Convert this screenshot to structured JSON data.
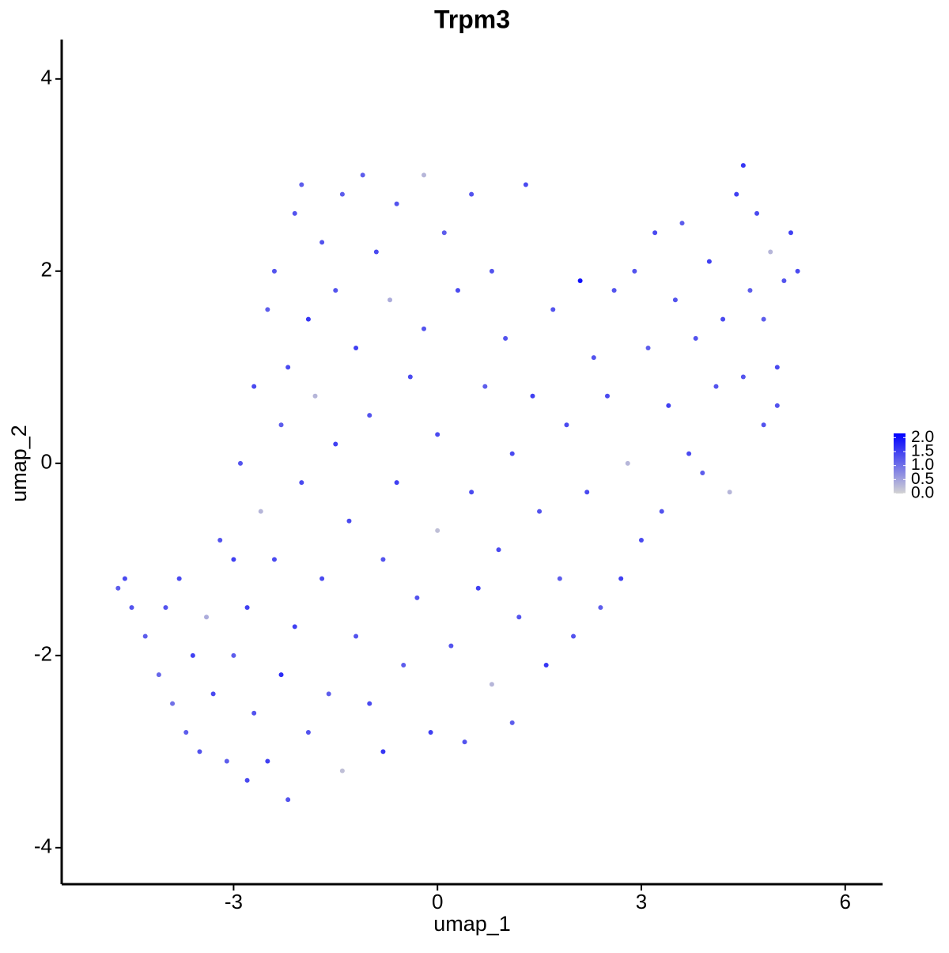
{
  "chart_data": {
    "type": "scatter",
    "title": "Trpm3",
    "x_label": "umap_1",
    "y_label": "umap_2",
    "xlim": [
      -5.53,
      6.55
    ],
    "ylim": [
      -4.38,
      4.41
    ],
    "xticks": [
      -3,
      0,
      3,
      6
    ],
    "yticks": [
      -4,
      -2,
      0,
      2,
      4
    ],
    "color_low": "#d3d3d3",
    "color_high": "#0000ff",
    "colorlim": [
      0,
      2.15
    ],
    "colorticks": [
      {
        "value": 0,
        "label": "0.0"
      },
      0.5,
      {
        "value": 1,
        "label": "1.0"
      },
      1.5,
      {
        "value": 2,
        "label": "2.0"
      }
    ],
    "x": [
      -4.7,
      -4.6,
      -4.5,
      -4.3,
      -4.1,
      -4.0,
      -3.9,
      -3.8,
      -3.7,
      -3.6,
      -3.5,
      -3.4,
      -3.3,
      -3.2,
      -3.1,
      -3.0,
      -3.0,
      -2.9,
      -2.8,
      -2.8,
      -2.7,
      -2.7,
      -2.6,
      -2.5,
      -2.5,
      -2.4,
      -2.4,
      -2.3,
      -2.3,
      -2.2,
      -2.2,
      -2.1,
      -2.1,
      -2.0,
      -2.0,
      -1.9,
      -1.9,
      -1.8,
      -1.7,
      -1.7,
      -1.6,
      -1.5,
      -1.5,
      -1.4,
      -1.4,
      -1.3,
      -1.2,
      -1.2,
      -1.1,
      -1.0,
      -1.0,
      -0.9,
      -0.8,
      -0.8,
      -0.7,
      -0.6,
      -0.6,
      -0.5,
      -0.4,
      -0.3,
      -0.2,
      -0.2,
      -0.1,
      0.0,
      0.0,
      0.1,
      0.2,
      0.3,
      0.4,
      0.5,
      0.5,
      0.6,
      0.7,
      0.8,
      0.8,
      0.9,
      1.0,
      1.1,
      1.1,
      1.2,
      1.3,
      1.4,
      1.5,
      1.6,
      1.7,
      1.8,
      1.9,
      2.0,
      2.1,
      2.2,
      2.3,
      2.4,
      2.5,
      2.6,
      2.7,
      2.8,
      2.9,
      3.0,
      3.1,
      3.2,
      3.3,
      3.4,
      3.5,
      3.6,
      3.7,
      3.8,
      3.9,
      4.0,
      4.1,
      4.2,
      4.3,
      4.4,
      4.5,
      4.5,
      4.6,
      4.7,
      4.8,
      4.8,
      4.9,
      5.0,
      5.1,
      5.2,
      5.3,
      5.0
    ],
    "y": [
      -1.3,
      -1.2,
      -1.5,
      -1.8,
      -2.2,
      -1.5,
      -2.5,
      -1.2,
      -2.8,
      -2.0,
      -3.0,
      -1.6,
      -2.4,
      -0.8,
      -3.1,
      -1.0,
      -2.0,
      0.0,
      -3.3,
      -1.5,
      0.8,
      -2.6,
      -0.5,
      1.6,
      -3.1,
      -1.0,
      2.0,
      -2.2,
      0.4,
      -3.5,
      1.0,
      2.6,
      -1.7,
      -0.2,
      2.9,
      1.5,
      -2.8,
      0.7,
      -1.2,
      2.3,
      -2.4,
      0.2,
      1.8,
      -3.2,
      2.8,
      -0.6,
      1.2,
      -1.8,
      3.0,
      -2.5,
      0.5,
      2.2,
      -1.0,
      -3.0,
      1.7,
      -0.2,
      2.7,
      -2.1,
      0.9,
      -1.4,
      3.0,
      1.4,
      -2.8,
      -0.7,
      0.3,
      2.4,
      -1.9,
      1.8,
      -2.9,
      -0.3,
      2.8,
      -1.3,
      0.8,
      -2.3,
      2.0,
      -0.9,
      1.3,
      -2.7,
      0.1,
      -1.6,
      2.9,
      0.7,
      -0.5,
      -2.1,
      1.6,
      -1.2,
      0.4,
      -1.8,
      1.9,
      -0.3,
      1.1,
      -1.5,
      0.7,
      1.8,
      -1.2,
      0.0,
      2.0,
      -0.8,
      1.2,
      2.4,
      -0.5,
      0.6,
      1.7,
      2.5,
      0.1,
      1.3,
      -0.1,
      2.1,
      0.8,
      1.5,
      -0.3,
      2.8,
      3.1,
      0.9,
      1.8,
      2.6,
      0.4,
      1.5,
      2.2,
      1.0,
      1.9,
      2.4,
      2.0,
      0.6
    ],
    "values": [
      1.2,
      1.4,
      1.3,
      1.2,
      1.1,
      1.3,
      1.0,
      1.4,
      1.2,
      1.5,
      1.3,
      0.4,
      1.4,
      1.3,
      1.2,
      1.5,
      1.2,
      1.3,
      1.4,
      1.5,
      1.4,
      1.3,
      0.3,
      1.2,
      1.5,
      1.4,
      1.3,
      1.7,
      1.2,
      1.3,
      1.4,
      1.3,
      1.5,
      1.4,
      1.2,
      1.6,
      1.3,
      0.3,
      1.4,
      1.3,
      1.2,
      1.5,
      1.3,
      0.2,
      1.2,
      1.4,
      1.5,
      1.3,
      1.2,
      1.4,
      1.3,
      1.4,
      1.3,
      1.6,
      0.4,
      1.5,
      1.3,
      1.2,
      1.4,
      1.3,
      0.3,
      1.3,
      1.5,
      0.2,
      1.4,
      1.2,
      1.3,
      1.4,
      1.3,
      1.4,
      1.3,
      1.5,
      1.2,
      0.3,
      1.3,
      1.4,
      1.3,
      1.2,
      1.4,
      1.3,
      1.4,
      1.5,
      1.3,
      1.6,
      1.3,
      1.2,
      1.4,
      1.3,
      2.0,
      1.4,
      1.3,
      1.2,
      1.4,
      1.3,
      1.5,
      0.3,
      1.3,
      1.4,
      1.2,
      1.4,
      1.3,
      1.5,
      1.3,
      1.2,
      1.4,
      1.3,
      1.2,
      1.5,
      1.3,
      1.4,
      0.3,
      1.5,
      1.6,
      1.3,
      1.2,
      1.4,
      1.3,
      1.2,
      0.3,
      1.4,
      1.3,
      1.5,
      1.4,
      1.3
    ]
  }
}
